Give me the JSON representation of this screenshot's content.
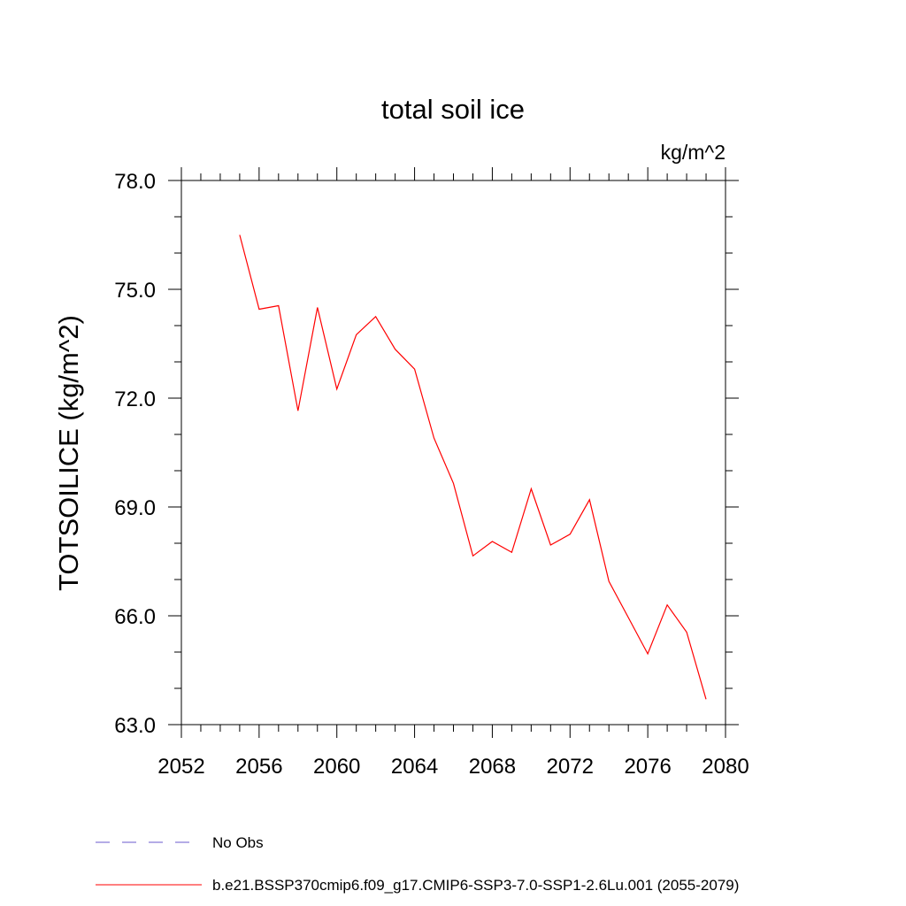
{
  "chart_data": {
    "type": "line",
    "title": "total soil ice",
    "units_label": "kg/m^2",
    "ylabel": "TOTSOILICE  (kg/m^2)",
    "xlabel": "",
    "xlim": [
      2052,
      2080
    ],
    "ylim": [
      63.0,
      78.0
    ],
    "x_ticks": [
      2052,
      2056,
      2060,
      2064,
      2068,
      2072,
      2076,
      2080
    ],
    "x_tick_labels": [
      "2052",
      "2056",
      "2060",
      "2064",
      "2068",
      "2072",
      "2076",
      "2080"
    ],
    "y_ticks": [
      63.0,
      66.0,
      69.0,
      72.0,
      75.0,
      78.0
    ],
    "y_tick_labels": [
      "63.0",
      "66.0",
      "69.0",
      "72.0",
      "75.0",
      "78.0"
    ],
    "x_minor_step": 1,
    "y_minor_step": 1,
    "grid": false,
    "legend_position": "bottom-left",
    "series": [
      {
        "name": "b.e21.BSSP370cmip6.f09_g17.CMIP6-SSP3-7.0-SSP1-2.6Lu.001 (2055-2079)",
        "color": "#ff0000",
        "style": "solid",
        "x": [
          2055,
          2056,
          2057,
          2058,
          2059,
          2060,
          2061,
          2062,
          2063,
          2064,
          2065,
          2066,
          2067,
          2068,
          2069,
          2070,
          2071,
          2072,
          2073,
          2074,
          2075,
          2076,
          2077,
          2078,
          2079
        ],
        "y": [
          76.5,
          74.45,
          74.55,
          71.65,
          74.5,
          72.25,
          73.75,
          74.25,
          73.35,
          72.8,
          70.9,
          69.65,
          67.65,
          68.05,
          67.75,
          69.5,
          67.95,
          68.25,
          69.2,
          66.95,
          65.95,
          64.95,
          66.3,
          65.55,
          63.7
        ]
      }
    ],
    "legend": [
      {
        "label": "No Obs",
        "color": "#6a5acd",
        "style": "dashed"
      },
      {
        "label": "b.e21.BSSP370cmip6.f09_g17.CMIP6-SSP3-7.0-SSP1-2.6Lu.001 (2055-2079)",
        "color": "#ff0000",
        "style": "solid"
      }
    ]
  }
}
